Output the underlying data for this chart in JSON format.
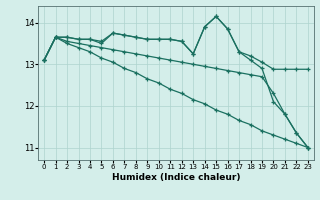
{
  "x": [
    0,
    1,
    2,
    3,
    4,
    5,
    6,
    7,
    8,
    9,
    10,
    11,
    12,
    13,
    14,
    15,
    16,
    17,
    18,
    19,
    20,
    21,
    22,
    23
  ],
  "line1": [
    13.1,
    13.65,
    13.65,
    13.6,
    13.6,
    13.55,
    13.75,
    13.7,
    13.65,
    13.6,
    13.6,
    13.6,
    13.55,
    13.25,
    13.9,
    14.15,
    13.85,
    13.3,
    13.2,
    13.05,
    12.88,
    12.88,
    12.88,
    12.88
  ],
  "line2": [
    13.1,
    13.65,
    13.65,
    13.6,
    13.6,
    13.5,
    13.75,
    13.7,
    13.65,
    13.6,
    13.6,
    13.6,
    13.55,
    13.25,
    13.9,
    14.15,
    13.85,
    13.3,
    13.1,
    12.9,
    12.1,
    11.8,
    11.35,
    11.0
  ],
  "line3": [
    13.1,
    13.65,
    13.55,
    13.5,
    13.45,
    13.4,
    13.35,
    13.3,
    13.25,
    13.2,
    13.15,
    13.1,
    13.05,
    13.0,
    12.95,
    12.9,
    12.85,
    12.8,
    12.75,
    12.7,
    12.3,
    11.8,
    11.35,
    11.0
  ],
  "line4": [
    13.1,
    13.65,
    13.5,
    13.4,
    13.3,
    13.15,
    13.05,
    12.9,
    12.8,
    12.65,
    12.55,
    12.4,
    12.3,
    12.15,
    12.05,
    11.9,
    11.8,
    11.65,
    11.55,
    11.4,
    11.3,
    11.2,
    11.1,
    11.0
  ],
  "line_color": "#1a7060",
  "marker": "+",
  "markersize": 3.5,
  "linewidth": 0.9,
  "bg_color": "#d4eeea",
  "grid_color": "#aed4ce",
  "xlabel": "Humidex (Indice chaleur)",
  "xlabel_fontsize": 6.5,
  "yticks": [
    11,
    12,
    13,
    14
  ],
  "xticks": [
    0,
    1,
    2,
    3,
    4,
    5,
    6,
    7,
    8,
    9,
    10,
    11,
    12,
    13,
    14,
    15,
    16,
    17,
    18,
    19,
    20,
    21,
    22,
    23
  ],
  "ylim": [
    10.7,
    14.4
  ],
  "xlim": [
    -0.5,
    23.5
  ]
}
